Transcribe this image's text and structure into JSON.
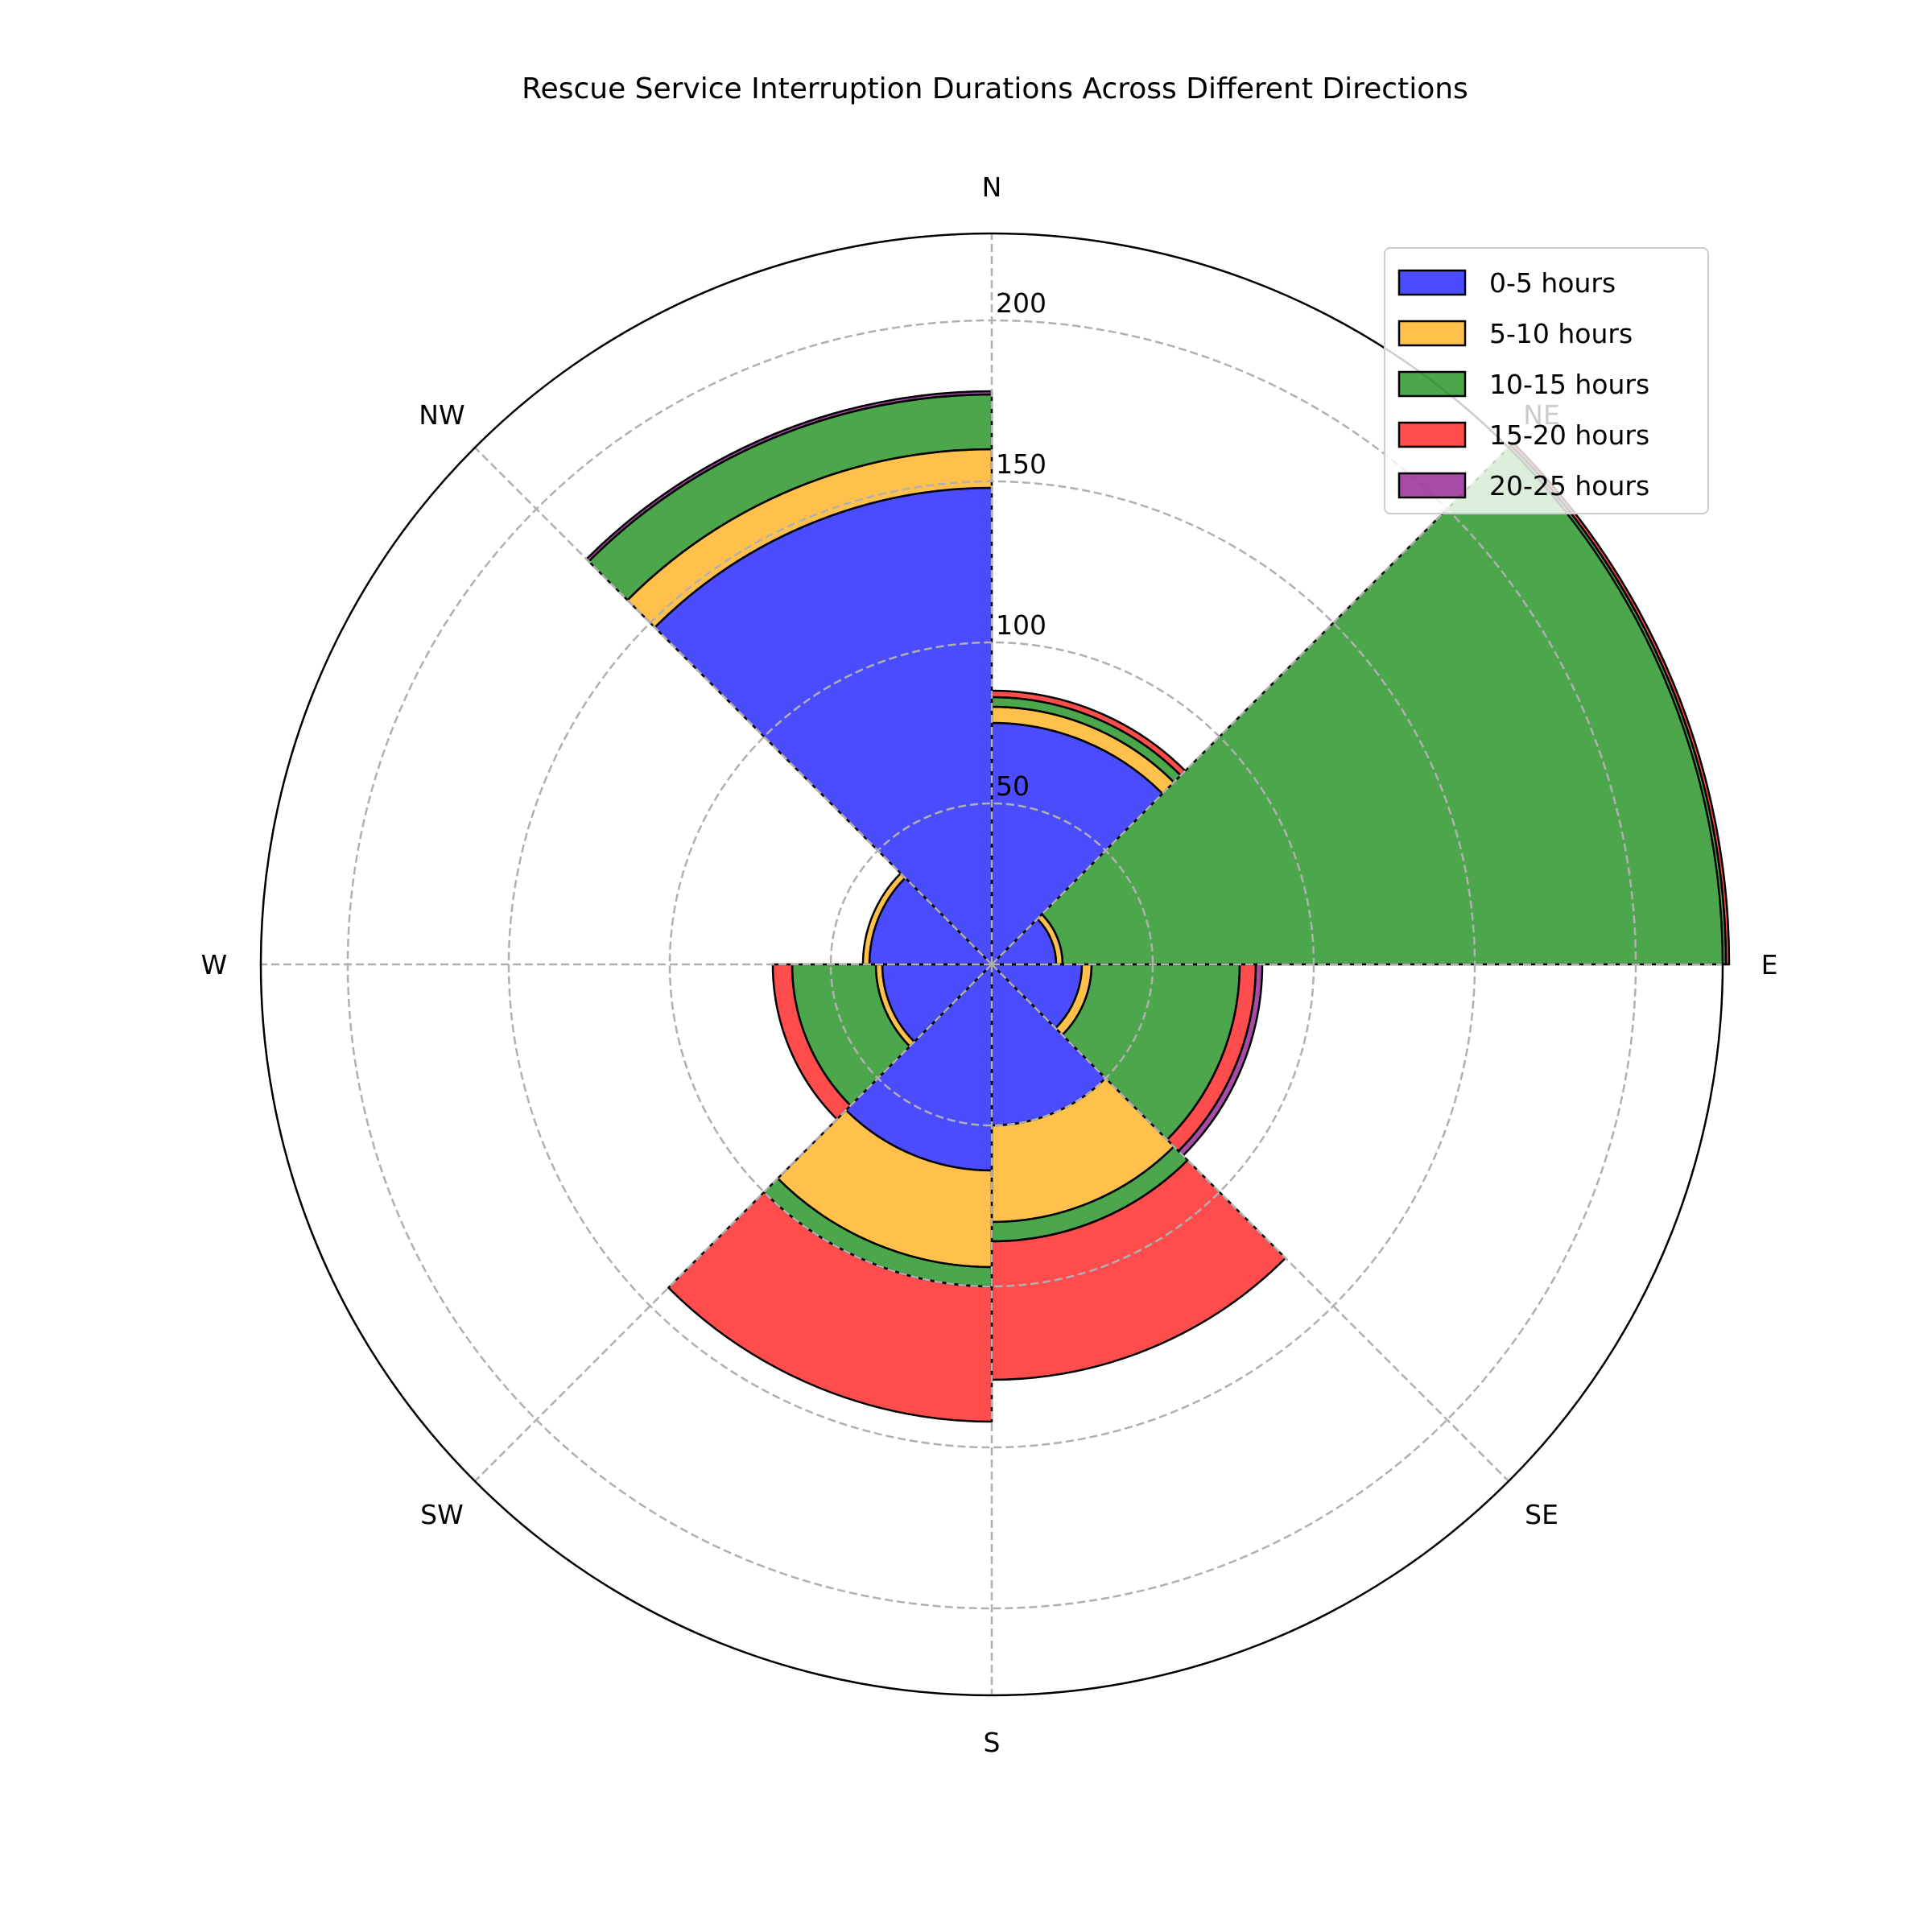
{
  "chart_data": {
    "type": "bar",
    "subtype": "polar-stacked-wind-rose",
    "title": "Rescue Service Interruption Durations Across Different Directions",
    "categories": [
      "N",
      "NE",
      "E",
      "SE",
      "S",
      "SW",
      "W",
      "NW"
    ],
    "series": [
      {
        "name": "0-5 hours",
        "color": "#0000ff",
        "values": [
          75,
          20,
          28,
          50,
          64,
          34,
          38,
          148
        ]
      },
      {
        "name": "5-10 hours",
        "color": "#ffa500",
        "values": [
          5,
          2,
          3,
          30,
          30,
          2,
          2,
          12
        ]
      },
      {
        "name": "10-15 hours",
        "color": "#008000",
        "values": [
          3,
          206,
          46,
          6,
          6,
          26,
          0,
          17
        ]
      },
      {
        "name": "15-20 hours",
        "color": "#ff0000",
        "values": [
          2,
          1,
          5,
          43,
          42,
          6,
          0,
          0
        ]
      },
      {
        "name": "20-25 hours",
        "color": "#800080",
        "values": [
          0,
          0,
          2,
          0,
          0,
          0,
          0,
          1
        ]
      }
    ],
    "radial_ticks": [
      50,
      100,
      150,
      200
    ],
    "rmax": 227,
    "grid": true,
    "legend_position": "upper-right",
    "direction": "clockwise",
    "zero_location": "N"
  }
}
